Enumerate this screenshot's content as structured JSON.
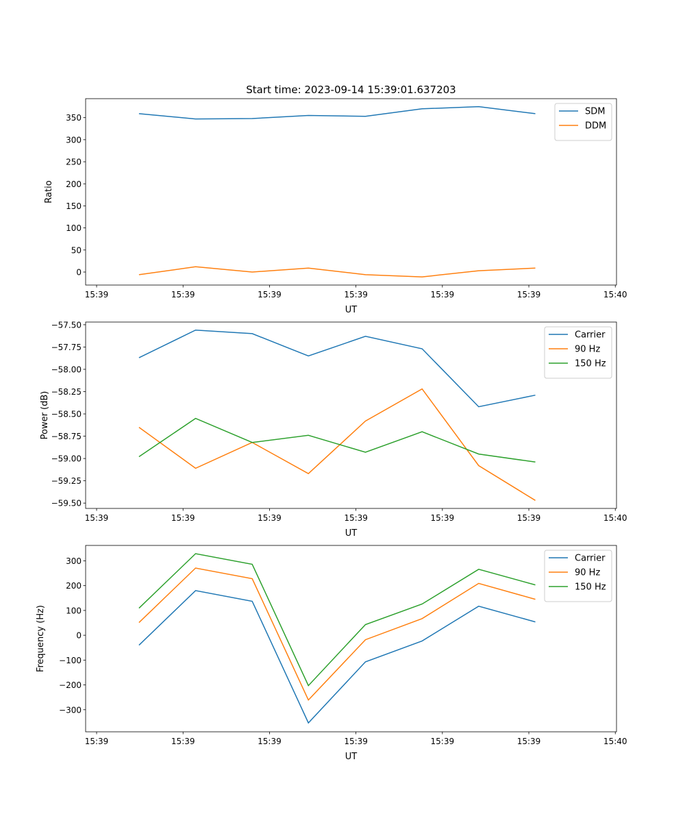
{
  "chart_data": [
    {
      "type": "line",
      "title": "Start time: 2023-09-14 15:39:01.637203",
      "xlabel": "UT",
      "ylabel": "Ratio",
      "x_seconds_after_1539": [
        4.9,
        11.45,
        18.0,
        24.5,
        31.1,
        37.65,
        44.2,
        50.75
      ],
      "xlim": [
        -1.27,
        60.14
      ],
      "xticks": [
        0,
        10,
        20,
        30,
        40,
        50,
        60
      ],
      "xtick_labels": [
        "15:39",
        "15:39",
        "15:39",
        "15:39",
        "15:39",
        "15:39",
        "15:40"
      ],
      "ylim": [
        -29.5,
        393
      ],
      "yticks": [
        0,
        50,
        100,
        150,
        200,
        250,
        300,
        350
      ],
      "ytick_labels": [
        "0",
        "50",
        "100",
        "150",
        "200",
        "250",
        "300",
        "350"
      ],
      "legend": "top-right",
      "series": [
        {
          "name": "SDM",
          "color": "#1f77b4",
          "values": [
            359,
            347,
            348,
            355,
            353,
            370,
            375,
            359
          ]
        },
        {
          "name": "DDM",
          "color": "#ff7f0e",
          "values": [
            -6,
            12,
            0,
            9,
            -6,
            -11,
            3,
            9
          ]
        }
      ]
    },
    {
      "type": "line",
      "title": "",
      "xlabel": "UT",
      "ylabel": "Power (dB)",
      "x_seconds_after_1539": [
        4.9,
        11.45,
        18.0,
        24.5,
        31.1,
        37.65,
        44.2,
        50.75
      ],
      "xlim": [
        -1.27,
        60.14
      ],
      "xticks": [
        0,
        10,
        20,
        30,
        40,
        50,
        60
      ],
      "xtick_labels": [
        "15:39",
        "15:39",
        "15:39",
        "15:39",
        "15:39",
        "15:39",
        "15:40"
      ],
      "ylim": [
        -59.56,
        -57.47
      ],
      "yticks": [
        -57.5,
        -57.75,
        -58.0,
        -58.25,
        -58.5,
        -58.75,
        -59.0,
        -59.25,
        -59.5
      ],
      "ytick_labels": [
        "−57.50",
        "−57.75",
        "−58.00",
        "−58.25",
        "−58.50",
        "−58.75",
        "−59.00",
        "−59.25",
        "−59.50"
      ],
      "legend": "top-right",
      "series": [
        {
          "name": "Carrier",
          "color": "#1f77b4",
          "values": [
            -57.87,
            -57.56,
            -57.6,
            -57.85,
            -57.63,
            -57.77,
            -58.42,
            -58.29
          ]
        },
        {
          "name": "90 Hz",
          "color": "#ff7f0e",
          "values": [
            -58.65,
            -59.11,
            -58.82,
            -59.17,
            -58.58,
            -58.22,
            -59.08,
            -59.47
          ]
        },
        {
          "name": "150 Hz",
          "color": "#2ca02c",
          "values": [
            -58.98,
            -58.55,
            -58.82,
            -58.74,
            -58.93,
            -58.7,
            -58.95,
            -59.04
          ]
        }
      ]
    },
    {
      "type": "line",
      "title": "",
      "xlabel": "UT",
      "ylabel": "Frequency (Hz)",
      "x_seconds_after_1539": [
        4.9,
        11.45,
        18.0,
        24.5,
        31.1,
        37.65,
        44.2,
        50.75
      ],
      "xlim": [
        -1.27,
        60.14
      ],
      "xticks": [
        0,
        10,
        20,
        30,
        40,
        50,
        60
      ],
      "xtick_labels": [
        "15:39",
        "15:39",
        "15:39",
        "15:39",
        "15:39",
        "15:39",
        "15:40"
      ],
      "ylim": [
        -389,
        362
      ],
      "yticks": [
        -300,
        -200,
        -100,
        0,
        100,
        200,
        300
      ],
      "ytick_labels": [
        "−300",
        "−200",
        "−100",
        "0",
        "100",
        "200",
        "300"
      ],
      "legend": "top-right",
      "series": [
        {
          "name": "Carrier",
          "color": "#1f77b4",
          "values": [
            -40,
            180,
            137,
            -353,
            -107,
            -23,
            117,
            54
          ]
        },
        {
          "name": "90 Hz",
          "color": "#ff7f0e",
          "values": [
            51,
            271,
            228,
            -261,
            -18,
            67,
            209,
            145
          ]
        },
        {
          "name": "150 Hz",
          "color": "#2ca02c",
          "values": [
            109,
            329,
            286,
            -203,
            43,
            126,
            266,
            203
          ]
        }
      ]
    }
  ]
}
